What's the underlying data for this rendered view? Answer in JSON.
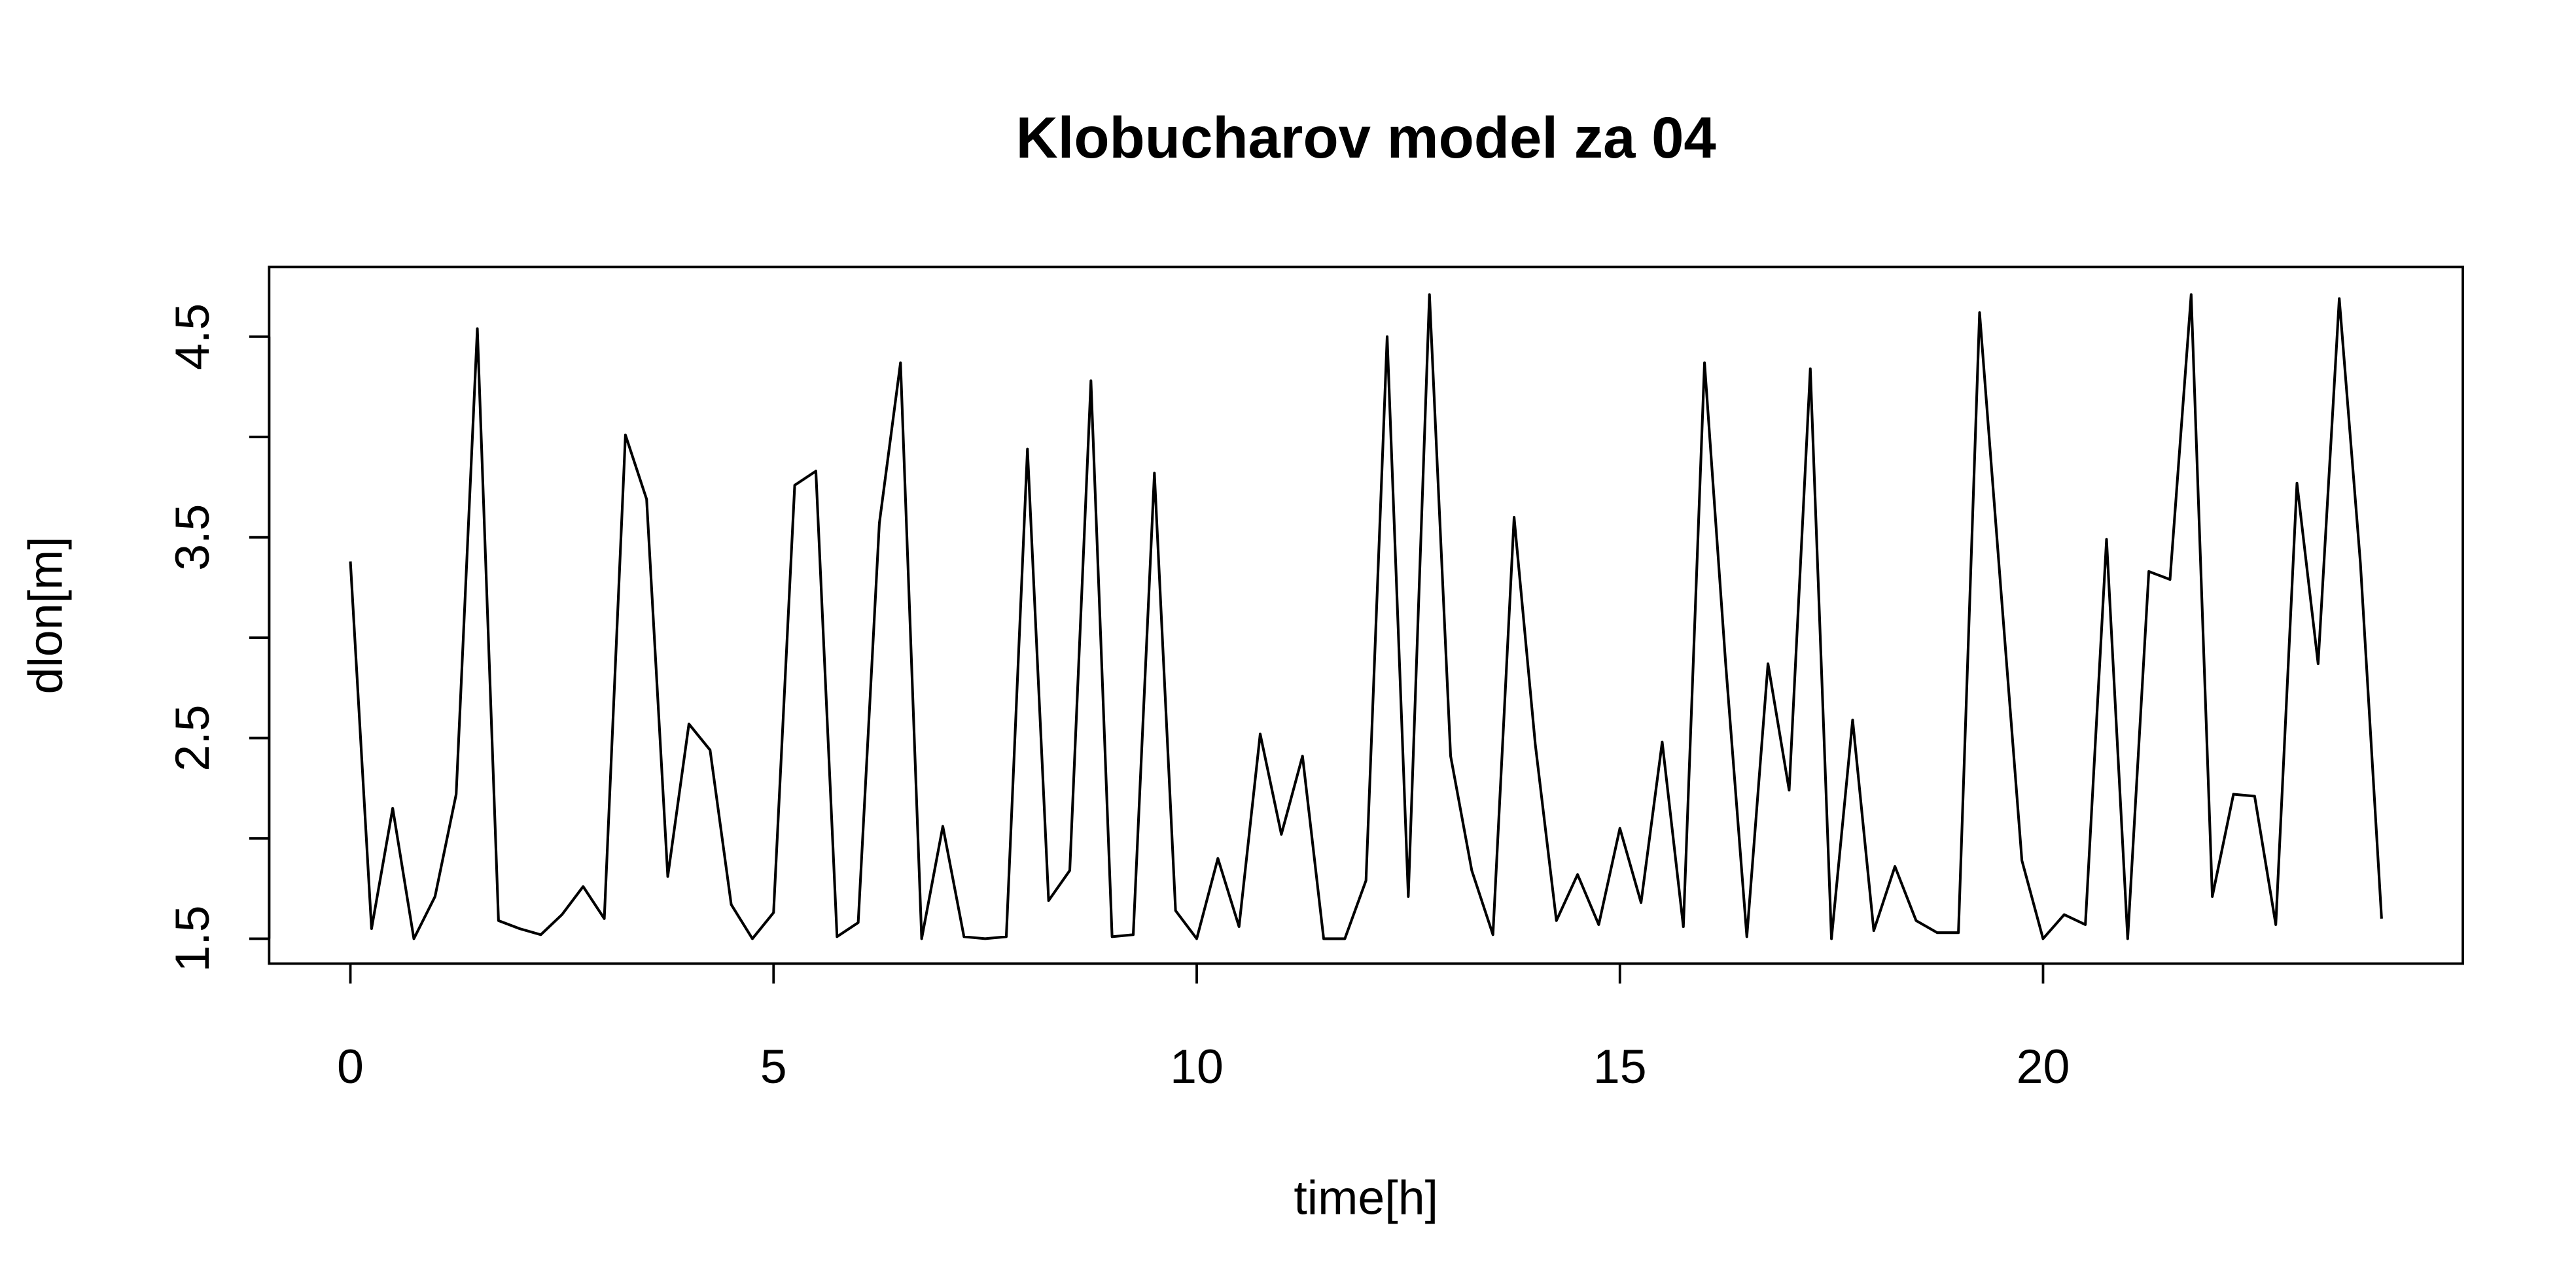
{
  "chart_data": {
    "type": "line",
    "title": "Klobucharov model za 04",
    "xlabel": "time[h]",
    "ylabel": "dlon[m]",
    "x": [
      0,
      0.25,
      0.5,
      0.75,
      1,
      1.25,
      1.5,
      1.75,
      2,
      2.25,
      2.5,
      2.75,
      3,
      3.25,
      3.5,
      3.75,
      4,
      4.25,
      4.5,
      4.75,
      5,
      5.25,
      5.5,
      5.75,
      6,
      6.25,
      6.5,
      6.75,
      7,
      7.25,
      7.5,
      7.75,
      8,
      8.25,
      8.5,
      8.75,
      9,
      9.25,
      9.5,
      9.75,
      10,
      10.25,
      10.5,
      10.75,
      11,
      11.25,
      11.5,
      11.75,
      12,
      12.25,
      12.5,
      12.75,
      13,
      13.25,
      13.5,
      13.75,
      14,
      14.25,
      14.5,
      14.75,
      15,
      15.25,
      15.5,
      15.75,
      16,
      16.25,
      16.5,
      16.75,
      17,
      17.25,
      17.5,
      17.75,
      18,
      18.25,
      18.5,
      18.75,
      19,
      19.25,
      19.5,
      19.75,
      20,
      20.25,
      20.5,
      20.75,
      21,
      21.25,
      21.5,
      21.75,
      22,
      22.25,
      22.5,
      22.75,
      23,
      23.25,
      23.5,
      23.75,
      24
    ],
    "series": [
      {
        "color": "#000000",
        "values": [
          3.38,
          1.55,
          2.15,
          1.5,
          1.71,
          2.22,
          4.54,
          1.59,
          1.55,
          1.52,
          1.62,
          1.76,
          1.6,
          4.01,
          3.69,
          1.81,
          2.57,
          2.44,
          1.67,
          1.5,
          1.63,
          3.76,
          3.83,
          1.51,
          1.58,
          3.57,
          4.37,
          1.5,
          2.06,
          1.51,
          1.5,
          1.51,
          3.94,
          1.69,
          1.84,
          4.28,
          1.51,
          1.52,
          3.82,
          1.64,
          1.5,
          1.9,
          1.56,
          2.52,
          2.02,
          2.41,
          1.5,
          1.5,
          1.79,
          4.5,
          1.71,
          4.71,
          2.41,
          1.84,
          1.52,
          3.6,
          2.47,
          1.59,
          1.82,
          1.57,
          2.05,
          1.68,
          2.48,
          1.56,
          4.37,
          2.87,
          1.51,
          2.87,
          2.24,
          4.34,
          1.5,
          2.59,
          1.54,
          1.86,
          1.59,
          1.53,
          1.53,
          4.62,
          3.25,
          1.89,
          1.5,
          1.62,
          1.57,
          3.49,
          1.5,
          3.33,
          3.29,
          4.71,
          1.71,
          2.22,
          2.21,
          1.57,
          3.77,
          2.87,
          4.69,
          3.37,
          1.6
        ]
      }
    ],
    "xlim": [
      -0.96,
      24.96
    ],
    "xticks": [
      0,
      5,
      10,
      15,
      20
    ],
    "ylim": [
      1.376,
      4.847
    ],
    "yticks": [
      1.5,
      {
        "value": 2,
        "label": null
      },
      2.5,
      {
        "value": 3,
        "label": null
      },
      3.5,
      {
        "value": 4,
        "label": null
      },
      4.5
    ],
    "grid": false
  }
}
